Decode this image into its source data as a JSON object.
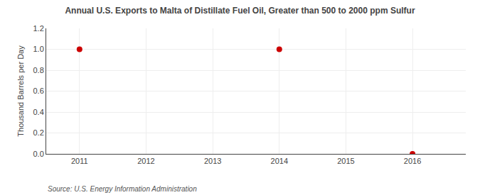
{
  "chart_data": {
    "type": "scatter",
    "title": "Annual U.S. Exports to Malta of Distillate Fuel Oil, Greater than 500 to 2000 ppm Sulfur",
    "y_label": "Thousand Barrels per Day",
    "annotations": [
      "Source: U.S. Energy Information Administration"
    ],
    "x": [
      2011,
      2014,
      2016
    ],
    "values": [
      1.0,
      1.0,
      0.0
    ],
    "color": "#cc0000",
    "marker": "circle",
    "xlim": [
      2010.5,
      2016.8
    ],
    "ylim": [
      0.0,
      1.2
    ],
    "xticks": [
      2011,
      2012,
      2013,
      2014,
      2015,
      2016
    ],
    "yticks": [
      {
        "value": 0.0,
        "label": "0.0"
      },
      0.2,
      0.4,
      0.6,
      0.8,
      {
        "value": 1.0,
        "label": "1.0"
      },
      1.2
    ],
    "grid": true
  }
}
